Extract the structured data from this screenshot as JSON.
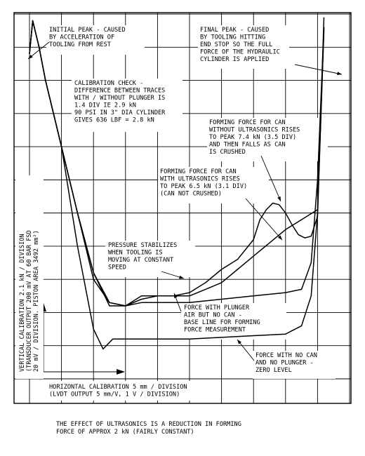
{
  "chart_data": {
    "type": "line",
    "title": "",
    "xlabel": "HORIZONTAL CALIBRATION 5 mm / DIVISION (LVDT OUTPUT 5 mm/V, 1 V / DIVISION)",
    "ylabel": "VERTICAL CALIBRATION 2.1 kN / DIVISION (TRANSDUCER OUTPUT 200 mV AT 60 BAR FSD 20 mV / DIVISION. PISTON AREA 3492 mm²)",
    "x_unit": "division",
    "y_unit": "division",
    "xlim": [
      0,
      10
    ],
    "ylim": [
      0,
      11
    ],
    "grid": true,
    "series": [
      {
        "key": "without_us",
        "color": "#000000",
        "x": [
          0.0,
          0.1,
          0.3,
          0.5,
          1.0,
          1.5,
          2.0,
          2.5,
          3.0,
          3.5,
          4.0,
          4.5,
          5.0,
          5.5,
          6.0,
          6.5,
          7.0,
          7.2,
          7.4,
          7.6,
          7.8,
          8.0,
          8.2,
          8.4,
          8.6,
          8.8,
          9.0,
          9.2
        ],
        "y": [
          9.8,
          10.8,
          10.0,
          9.0,
          7.0,
          5.0,
          3.2,
          2.2,
          2.2,
          2.5,
          2.5,
          2.5,
          2.6,
          2.9,
          3.3,
          3.6,
          4.2,
          4.8,
          5.1,
          5.3,
          5.25,
          5.0,
          4.65,
          4.35,
          4.25,
          4.3,
          4.9,
          10.6
        ]
      },
      {
        "key": "with_us",
        "color": "#000000",
        "x": [
          0.0,
          0.1,
          0.3,
          0.5,
          1.0,
          1.5,
          2.0,
          2.5,
          3.0,
          3.5,
          4.0,
          4.5,
          5.0,
          5.5,
          6.0,
          6.5,
          7.0,
          7.5,
          8.0,
          8.5,
          9.0,
          9.2
        ],
        "y": [
          9.8,
          10.8,
          10.0,
          9.0,
          7.0,
          5.0,
          3.2,
          2.3,
          2.2,
          2.4,
          2.5,
          2.5,
          2.5,
          2.7,
          2.9,
          3.3,
          3.7,
          4.1,
          4.5,
          4.8,
          5.1,
          10.5
        ]
      },
      {
        "key": "plunger_air",
        "color": "#000000",
        "x": [
          0.0,
          0.1,
          0.3,
          0.5,
          1.0,
          1.5,
          2.0,
          2.5,
          3.0,
          3.5,
          4.0,
          5.0,
          6.0,
          7.0,
          8.0,
          8.5,
          8.8,
          9.0,
          9.2
        ],
        "y": [
          9.8,
          10.8,
          10.0,
          9.0,
          7.0,
          5.0,
          3.0,
          2.3,
          2.2,
          2.3,
          2.3,
          2.3,
          2.4,
          2.5,
          2.6,
          2.7,
          3.5,
          6.0,
          10.6
        ]
      },
      {
        "key": "zero_level",
        "color": "#000000",
        "x": [
          0.0,
          0.1,
          0.3,
          0.5,
          1.0,
          1.5,
          2.0,
          2.3,
          2.6,
          3.0,
          3.5,
          4.0,
          5.0,
          6.0,
          7.0,
          8.0,
          8.5,
          8.8,
          9.0,
          9.2
        ],
        "y": [
          9.8,
          10.8,
          10.0,
          9.0,
          7.0,
          4.0,
          1.5,
          0.9,
          1.2,
          1.2,
          1.2,
          1.2,
          1.2,
          1.25,
          1.3,
          1.35,
          1.6,
          2.5,
          5.0,
          10.9
        ]
      }
    ],
    "annotations": [
      {
        "lines": [
          "INITIAL PEAK - CAUSED",
          "BY ACCELERATION OF",
          "TOOLING FROM REST"
        ]
      },
      {
        "lines": [
          "FINAL PEAK - CAUSED",
          "BY TOOLING HITTING",
          "END STOP SO THE FULL",
          "FORCE OF THE HYDRAULIC",
          "CYLINDER IS APPLIED"
        ]
      },
      {
        "lines": [
          "CALIBRATION CHECK -",
          "DIFFERENCE BETWEEN TRACES",
          "WITH / WITHOUT PLUNGER IS",
          "1.4 DIV IE 2.9 kN",
          "90 PSI IN 3\" DIA CYLINDER",
          "GIVES 636 LBF = 2.8 kN"
        ]
      },
      {
        "lines": [
          "FORMING FORCE FOR CAN",
          "WITHOUT ULTRASONICS RISES",
          "TO PEAK 7.4 kN (3.5 DIV)",
          "AND THEN FALLS AS CAN",
          "IS CRUSHED"
        ]
      },
      {
        "lines": [
          "FORMING FORCE FOR CAN",
          "WITH ULTRASONICS RISES",
          "TO PEAK 6.5 kN (3.1 DIV)",
          "(CAN NOT CRUSHED)"
        ]
      },
      {
        "lines": [
          "PRESSURE STABILIZES",
          "WHEN TOOLING IS",
          "MOVING AT CONSTANT",
          "SPEED"
        ]
      },
      {
        "lines": [
          "FORCE WITH PLUNGER",
          "AIR BUT NO CAN -",
          "BASE LINE FOR FORMING",
          "FORCE MEASUREMENT"
        ]
      },
      {
        "lines": [
          "FORCE WITH NO CAN",
          "AND NO PLUNGER -",
          "ZERO LEVEL"
        ]
      }
    ],
    "axis_label_lines": {
      "x": [
        "HORIZONTAL CALIBRATION 5 mm / DIVISION",
        "(LVDT OUTPUT 5 mm/V, 1 V / DIVISION)"
      ],
      "y": [
        "VERTICAL CALIBRATION 2.1 kN / DIVISION",
        "(TRANSDUCER OUTPUT 200 mV AT 60 BAR FSD",
        "20 mV / DIVISION. PISTON AREA 3492 mm²)"
      ]
    }
  },
  "footnote": {
    "line1": "THE EFFECT OF ULTRASONICS IS A REDUCTION IN FORMING",
    "line2": "FORCE OF APPROX 2 kN (FAIRLY CONSTANT)"
  }
}
